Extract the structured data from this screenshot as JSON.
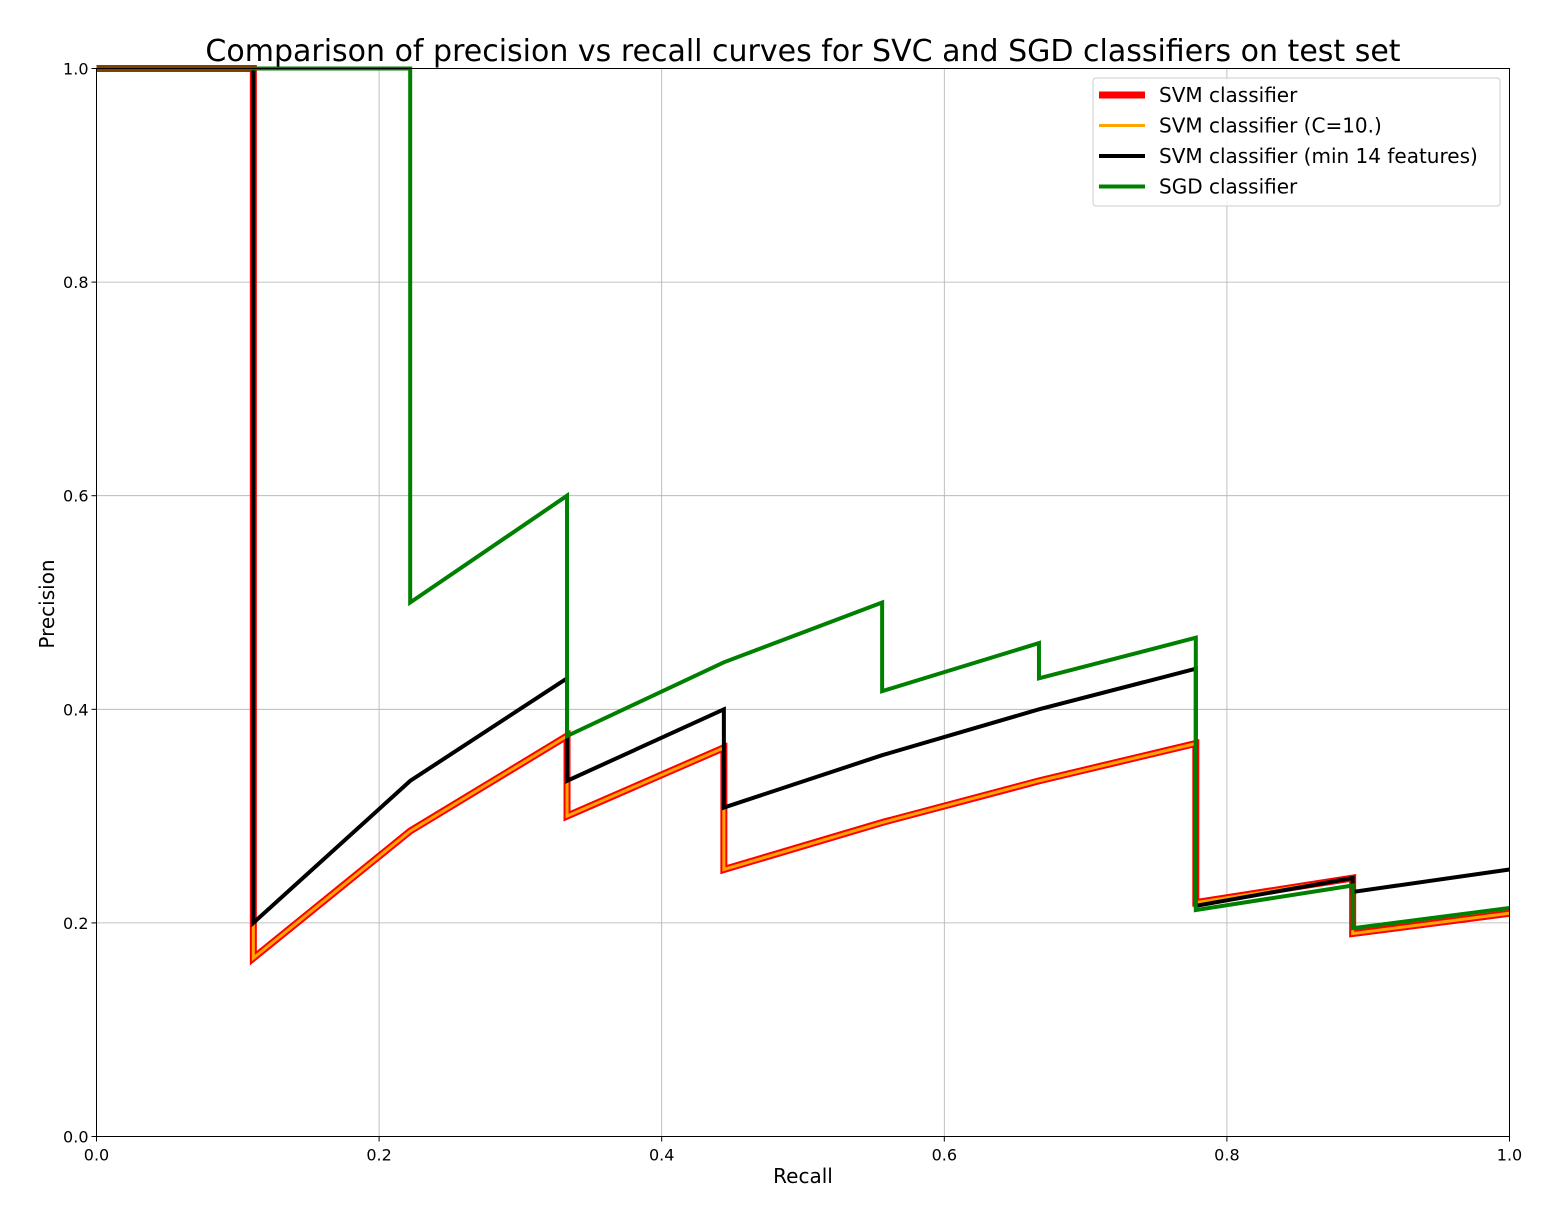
{
  "chart_data": {
    "type": "line",
    "title": "Comparison of precision vs recall curves for SVC and SGD classifiers on test set",
    "xlabel": "Recall",
    "ylabel": "Precision",
    "xlim": [
      0.0,
      1.0
    ],
    "ylim": [
      0.0,
      1.0
    ],
    "xticks": [
      "0.0",
      "0.2",
      "0.4",
      "0.6",
      "0.8",
      "1.0"
    ],
    "yticks": [
      "0.0",
      "0.2",
      "0.4",
      "0.6",
      "0.8",
      "1.0"
    ],
    "grid": true,
    "legend_position": "top-right",
    "series": [
      {
        "name": "SVM classifier",
        "color": "#ff0000",
        "points": [
          [
            0.0,
            1.0
          ],
          [
            0.111,
            1.0
          ],
          [
            0.111,
            0.167
          ],
          [
            0.222,
            0.286
          ],
          [
            0.333,
            0.375
          ],
          [
            0.333,
            0.3
          ],
          [
            0.444,
            0.364
          ],
          [
            0.444,
            0.25
          ],
          [
            0.556,
            0.294
          ],
          [
            0.667,
            0.333
          ],
          [
            0.778,
            0.368
          ],
          [
            0.778,
            0.219
          ],
          [
            0.889,
            0.242
          ],
          [
            0.889,
            0.19
          ],
          [
            1.0,
            0.209
          ]
        ]
      },
      {
        "name": "SVM classifier (C=10.)",
        "color": "#ffa500",
        "points": [
          [
            0.0,
            1.0
          ],
          [
            0.111,
            1.0
          ],
          [
            0.111,
            0.167
          ],
          [
            0.222,
            0.286
          ],
          [
            0.333,
            0.375
          ],
          [
            0.333,
            0.3
          ],
          [
            0.444,
            0.364
          ],
          [
            0.444,
            0.25
          ],
          [
            0.556,
            0.294
          ],
          [
            0.667,
            0.333
          ],
          [
            0.778,
            0.368
          ],
          [
            0.778,
            0.219
          ],
          [
            0.889,
            0.242
          ],
          [
            0.889,
            0.19
          ],
          [
            1.0,
            0.209
          ]
        ]
      },
      {
        "name": "SVM classifier (min 14 features)",
        "color": "#000000",
        "points": [
          [
            0.0,
            1.0
          ],
          [
            0.111,
            1.0
          ],
          [
            0.111,
            0.2
          ],
          [
            0.222,
            0.333
          ],
          [
            0.333,
            0.429
          ],
          [
            0.333,
            0.333
          ],
          [
            0.444,
            0.4
          ],
          [
            0.444,
            0.308
          ],
          [
            0.556,
            0.357
          ],
          [
            0.667,
            0.4
          ],
          [
            0.778,
            0.438
          ],
          [
            0.778,
            0.216
          ],
          [
            0.889,
            0.242
          ],
          [
            0.889,
            0.229
          ],
          [
            1.0,
            0.25
          ]
        ]
      },
      {
        "name": "SGD classifier",
        "color": "#008000",
        "points": [
          [
            0.0,
            1.0
          ],
          [
            0.222,
            1.0
          ],
          [
            0.222,
            0.5
          ],
          [
            0.333,
            0.6
          ],
          [
            0.333,
            0.375
          ],
          [
            0.444,
            0.444
          ],
          [
            0.556,
            0.5
          ],
          [
            0.556,
            0.417
          ],
          [
            0.667,
            0.462
          ],
          [
            0.667,
            0.429
          ],
          [
            0.778,
            0.467
          ],
          [
            0.778,
            0.212
          ],
          [
            0.889,
            0.235
          ],
          [
            0.889,
            0.195
          ],
          [
            1.0,
            0.214
          ]
        ]
      }
    ]
  }
}
